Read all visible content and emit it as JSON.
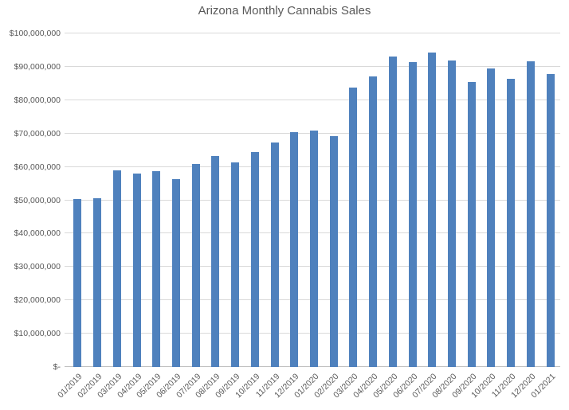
{
  "chart_data": {
    "type": "bar",
    "title": "Arizona Monthly Cannabis Sales",
    "categories": [
      "01/2019",
      "02/2019",
      "03/2019",
      "04/2019",
      "05/2019",
      "06/2019",
      "07/2019",
      "08/2019",
      "09/2019",
      "10/2019",
      "11/2019",
      "12/2019",
      "01/2020",
      "02/2020",
      "03/2020",
      "04/2020",
      "05/2020",
      "06/2020",
      "07/2020",
      "08/2020",
      "09/2020",
      "10/2020",
      "11/2020",
      "12/2020",
      "01/2021"
    ],
    "values": [
      50400000,
      50700000,
      59000000,
      57900000,
      58700000,
      56300000,
      60900000,
      63200000,
      61300000,
      64400000,
      67300000,
      70300000,
      70800000,
      69200000,
      83800000,
      87000000,
      93200000,
      91400000,
      94300000,
      91800000,
      85400000,
      89400000,
      86400000,
      91700000,
      87900000
    ],
    "xlabel": "",
    "ylabel": "",
    "ylim": [
      0,
      100000000
    ],
    "y_tick_interval": 10000000,
    "y_tick_labels": [
      "$-",
      "$10,000,000",
      "$20,000,000",
      "$30,000,000",
      "$40,000,000",
      "$50,000,000",
      "$60,000,000",
      "$70,000,000",
      "$80,000,000",
      "$90,000,000",
      "$100,000,000"
    ],
    "grid": true,
    "legend_position": "none",
    "bar_color": "#4f81bd",
    "gridline_color": "#d9d9d9",
    "axis_line_color": "#bfbfbf",
    "text_color": "#595959"
  }
}
